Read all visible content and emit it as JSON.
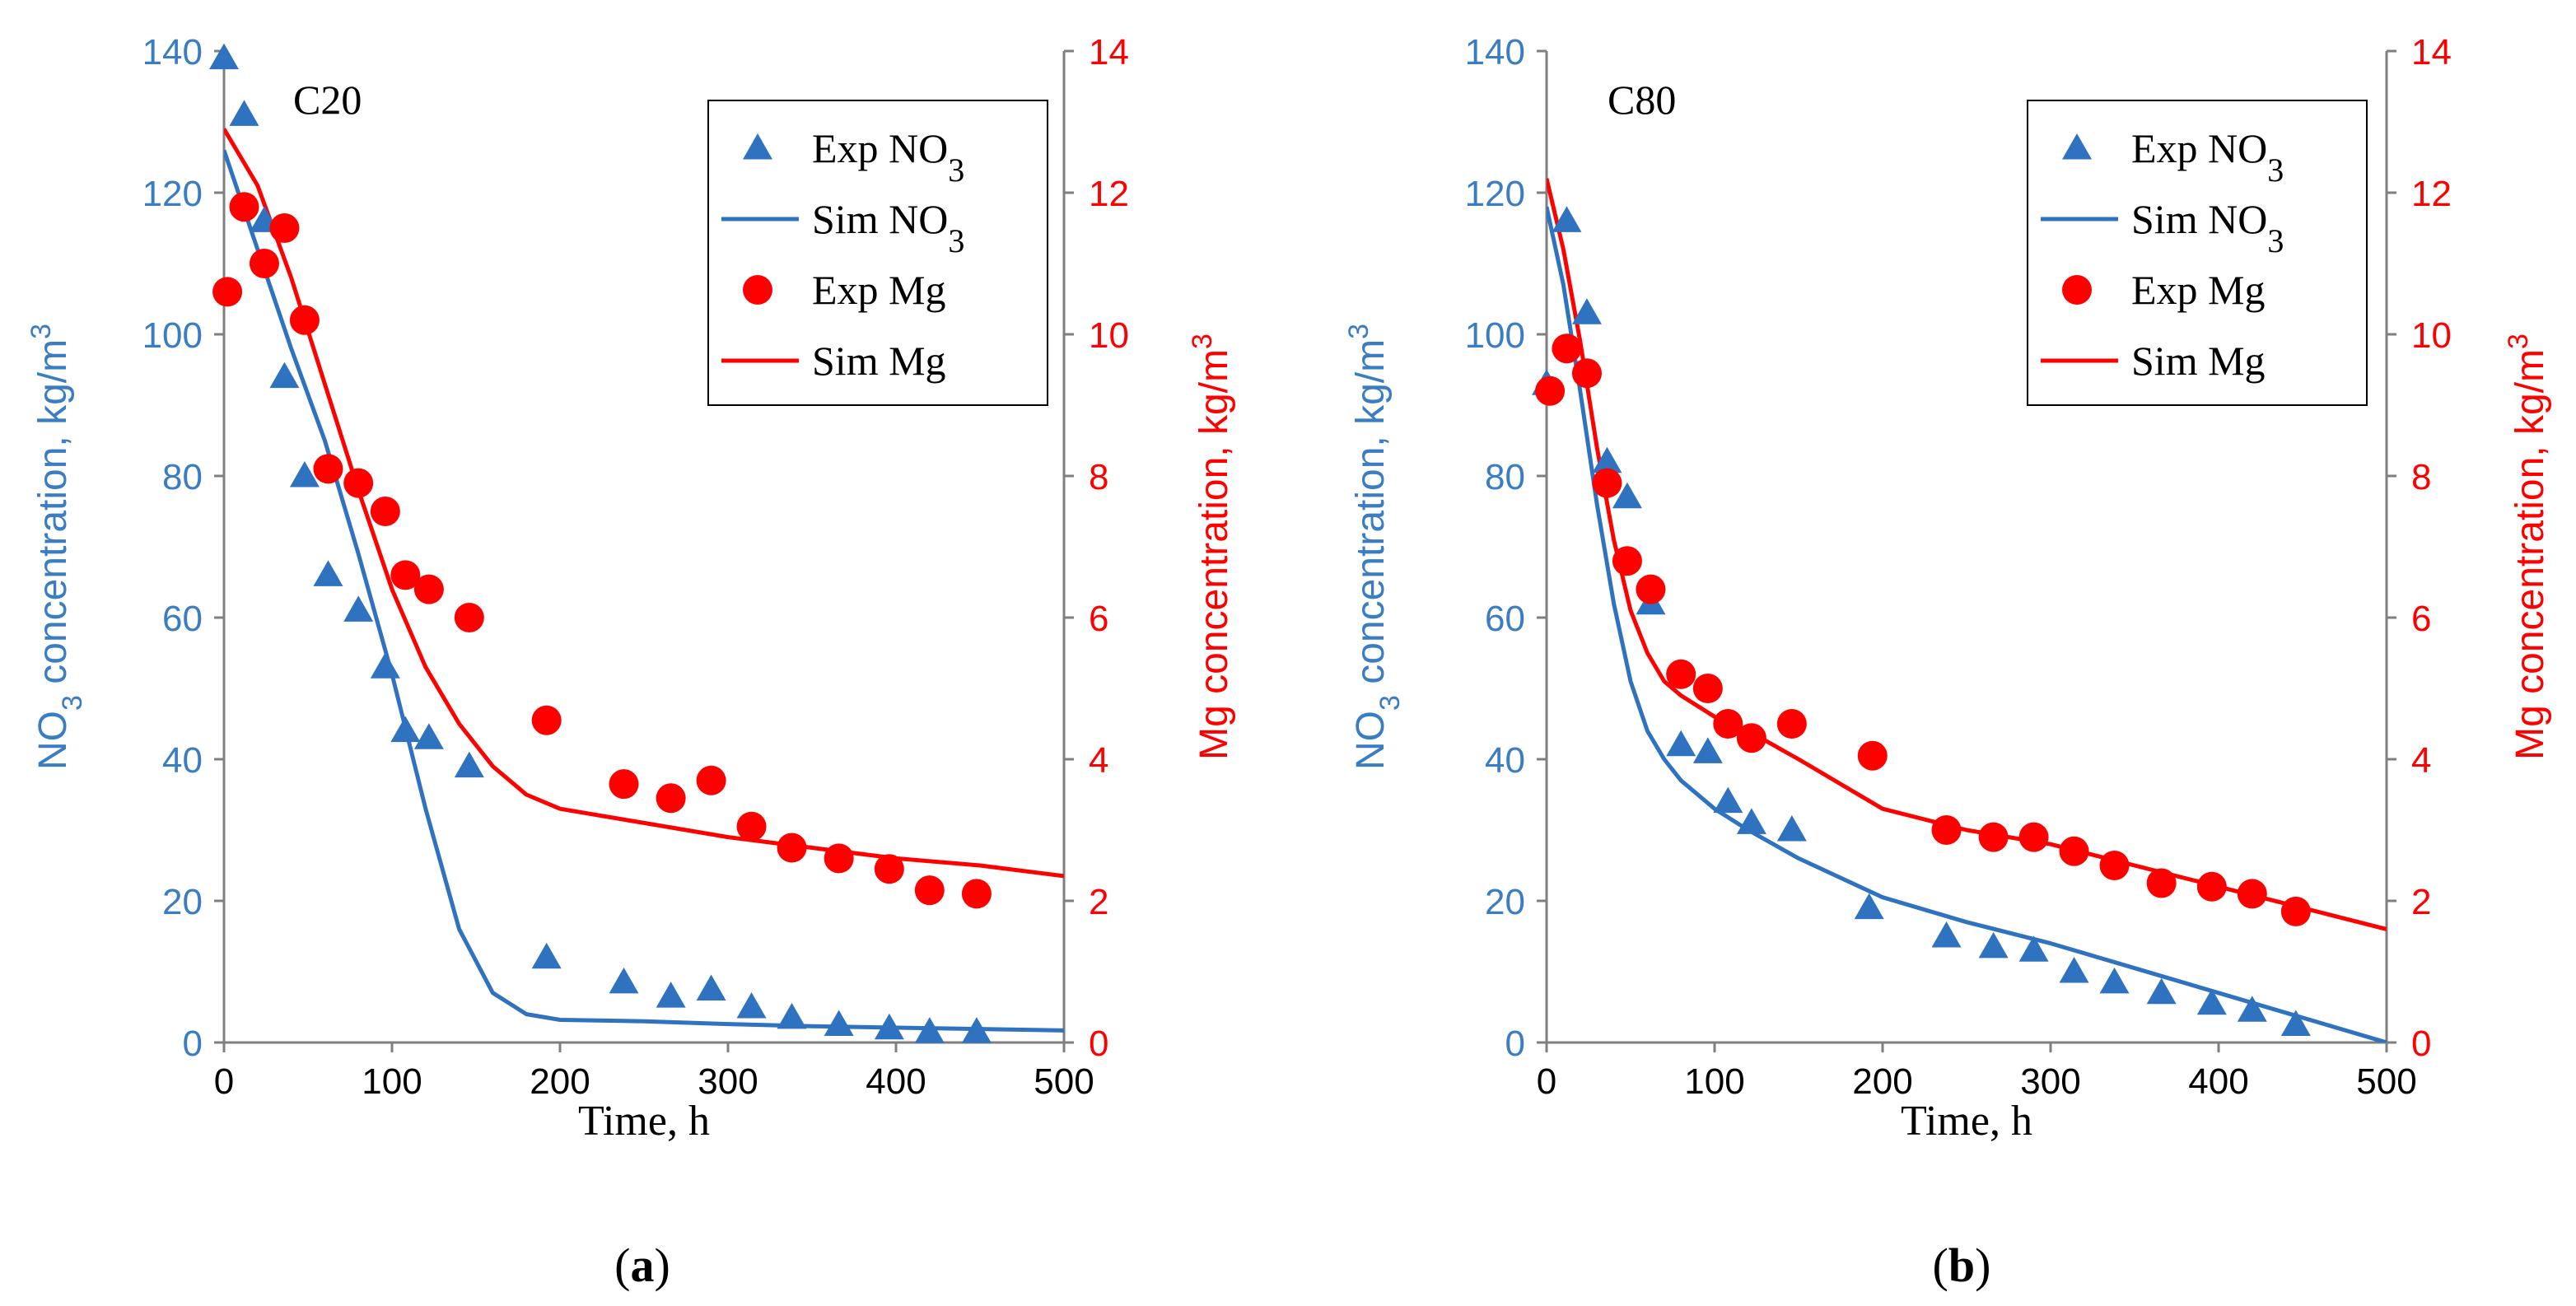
{
  "chart_data": [
    {
      "type": "scatter+line",
      "caption_letter": "a",
      "panel_label": "C20",
      "xlabel": "Time, h",
      "ylabel_left": {
        "prefix": "NO",
        "sub": "3",
        "suffix": " concentration, kg/m",
        "sup": "3"
      },
      "ylabel_right": {
        "prefix": "Mg concentration, kg/m",
        "sup": "3"
      },
      "xlim": [
        0,
        500
      ],
      "ylim_left": [
        0,
        140
      ],
      "ylim_right": [
        0,
        14
      ],
      "xticks": [
        "0",
        "100",
        "200",
        "300",
        "400",
        "500"
      ],
      "yticks_left": [
        "0",
        "20",
        "40",
        "60",
        "80",
        "100",
        "120",
        "140"
      ],
      "yticks_right": [
        "0",
        "2",
        "4",
        "6",
        "8",
        "10",
        "12",
        "14"
      ],
      "legend_position": "top-right",
      "legend": [
        {
          "text": "Exp NO",
          "sub": "3",
          "marker": "triangle",
          "color": "#2f72c0"
        },
        {
          "text": "Sim NO",
          "sub": "3",
          "marker": "line",
          "color": "#2f72c0"
        },
        {
          "text": "Exp Mg",
          "sub": "",
          "marker": "circle",
          "color": "#ff0000"
        },
        {
          "text": "Sim Mg",
          "sub": "",
          "marker": "line",
          "color": "#ff0000"
        }
      ],
      "series": [
        {
          "name": "Exp NO3",
          "axis": "left",
          "kind": "triangle",
          "color": "#2f72c0",
          "x": [
            0,
            12,
            24,
            36,
            48,
            62,
            80,
            96,
            108,
            122,
            146,
            192,
            238,
            266,
            290,
            314,
            338,
            366,
            396,
            420,
            448
          ],
          "y": [
            139,
            131,
            116,
            94,
            80,
            66,
            61,
            53,
            44,
            43,
            39,
            12,
            8.5,
            6.5,
            7.5,
            5,
            3.5,
            2.5,
            2,
            1.5,
            1.5
          ]
        },
        {
          "name": "Sim NO3",
          "axis": "left",
          "kind": "line",
          "color": "#2f72c0",
          "x": [
            0,
            20,
            40,
            60,
            80,
            100,
            120,
            140,
            160,
            180,
            200,
            250,
            300,
            350,
            400,
            450,
            500
          ],
          "y": [
            126,
            112,
            98,
            85,
            69,
            52,
            33,
            16,
            7,
            4,
            3.2,
            3,
            2.6,
            2.3,
            2.1,
            1.9,
            1.7
          ]
        },
        {
          "name": "Exp Mg",
          "axis": "right",
          "kind": "circle",
          "color": "#ff0000",
          "x": [
            2,
            12,
            24,
            36,
            48,
            62,
            80,
            96,
            108,
            122,
            146,
            192,
            238,
            266,
            290,
            314,
            338,
            366,
            396,
            420,
            448
          ],
          "y": [
            10.6,
            11.8,
            11.0,
            11.5,
            10.2,
            8.1,
            7.9,
            7.5,
            6.6,
            6.4,
            6.0,
            4.55,
            3.65,
            3.45,
            3.7,
            3.05,
            2.75,
            2.6,
            2.45,
            2.15,
            2.1
          ]
        },
        {
          "name": "Sim Mg",
          "axis": "right",
          "kind": "line",
          "color": "#ff0000",
          "x": [
            0,
            20,
            40,
            60,
            80,
            100,
            120,
            140,
            160,
            180,
            200,
            250,
            300,
            350,
            400,
            450,
            500
          ],
          "y": [
            12.9,
            12.1,
            10.8,
            9.3,
            7.8,
            6.4,
            5.3,
            4.5,
            3.9,
            3.5,
            3.3,
            3.1,
            2.9,
            2.75,
            2.6,
            2.5,
            2.35
          ]
        }
      ]
    },
    {
      "type": "scatter+line",
      "caption_letter": "b",
      "panel_label": "C80",
      "xlabel": "Time, h",
      "ylabel_left": {
        "prefix": "NO",
        "sub": "3",
        "suffix": " concentration, kg/m",
        "sup": "3"
      },
      "ylabel_right": {
        "prefix": "Mg concentration, kg/m",
        "sup": "3"
      },
      "xlim": [
        0,
        500
      ],
      "ylim_left": [
        0,
        140
      ],
      "ylim_right": [
        0,
        14
      ],
      "xticks": [
        "0",
        "100",
        "200",
        "300",
        "400",
        "500"
      ],
      "yticks_left": [
        "0",
        "20",
        "40",
        "60",
        "80",
        "100",
        "120",
        "140"
      ],
      "yticks_right": [
        "0",
        "2",
        "4",
        "6",
        "8",
        "10",
        "12",
        "14"
      ],
      "legend_position": "top-right",
      "legend": [
        {
          "text": "Exp NO",
          "sub": "3",
          "marker": "triangle",
          "color": "#2f72c0"
        },
        {
          "text": "Sim NO",
          "sub": "3",
          "marker": "line",
          "color": "#2f72c0"
        },
        {
          "text": "Exp Mg",
          "sub": "",
          "marker": "circle",
          "color": "#ff0000"
        },
        {
          "text": "Sim Mg",
          "sub": "",
          "marker": "line",
          "color": "#ff0000"
        }
      ],
      "series": [
        {
          "name": "Exp NO3",
          "axis": "left",
          "kind": "triangle",
          "color": "#2f72c0",
          "x": [
            0,
            12,
            24,
            36,
            48,
            62,
            80,
            96,
            108,
            122,
            146,
            192,
            238,
            266,
            290,
            314,
            338,
            366,
            396,
            420,
            446
          ],
          "y": [
            93,
            116,
            103,
            82,
            77,
            62,
            42,
            41,
            34,
            31,
            30,
            19,
            15,
            13.5,
            13,
            10,
            8.5,
            7,
            5.5,
            4.5,
            2.5
          ]
        },
        {
          "name": "Sim NO3",
          "axis": "left",
          "kind": "line",
          "color": "#2f72c0",
          "x": [
            0,
            10,
            20,
            30,
            40,
            50,
            60,
            70,
            80,
            100,
            120,
            150,
            200,
            250,
            300,
            350,
            400,
            450,
            500
          ],
          "y": [
            118,
            107,
            92,
            76,
            62,
            51,
            44,
            40,
            37,
            33,
            30,
            26,
            20.5,
            17,
            14,
            10.5,
            7,
            3.5,
            0
          ]
        },
        {
          "name": "Exp Mg",
          "axis": "right",
          "kind": "circle",
          "color": "#ff0000",
          "x": [
            2,
            12,
            24,
            36,
            48,
            62,
            80,
            96,
            108,
            122,
            146,
            194,
            238,
            266,
            290,
            314,
            338,
            366,
            396,
            420,
            446
          ],
          "y": [
            9.2,
            9.8,
            9.45,
            7.9,
            6.8,
            6.4,
            5.2,
            5.0,
            4.5,
            4.3,
            4.5,
            4.05,
            3.0,
            2.9,
            2.9,
            2.7,
            2.5,
            2.25,
            2.2,
            2.1,
            1.85
          ]
        },
        {
          "name": "Sim Mg",
          "axis": "right",
          "kind": "line",
          "color": "#ff0000",
          "x": [
            0,
            10,
            20,
            30,
            40,
            50,
            60,
            70,
            80,
            100,
            120,
            150,
            200,
            250,
            300,
            350,
            400,
            450,
            500
          ],
          "y": [
            12.2,
            11.2,
            9.9,
            8.4,
            7.1,
            6.1,
            5.5,
            5.1,
            4.9,
            4.6,
            4.4,
            4.0,
            3.3,
            3.0,
            2.8,
            2.5,
            2.2,
            1.9,
            1.6
          ]
        }
      ]
    }
  ]
}
